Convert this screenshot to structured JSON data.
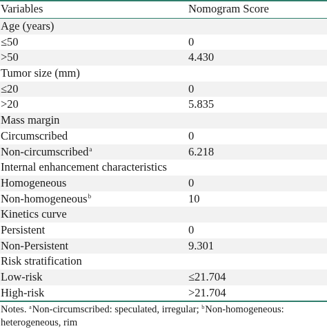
{
  "header": {
    "variables": "Variables",
    "score": "Nomogram Score"
  },
  "rows": [
    {
      "label": "Age (years)",
      "score": "",
      "sup": ""
    },
    {
      "label": "≤50",
      "score": "0",
      "sup": ""
    },
    {
      "label": ">50",
      "score": "4.430",
      "sup": ""
    },
    {
      "label": "Tumor size (mm)",
      "score": "",
      "sup": ""
    },
    {
      "label": "≤20",
      "score": "0",
      "sup": ""
    },
    {
      "label": ">20",
      "score": "5.835",
      "sup": ""
    },
    {
      "label": "Mass margin",
      "score": "",
      "sup": ""
    },
    {
      "label": "Circumscribed",
      "score": "0",
      "sup": ""
    },
    {
      "label": "Non-circumscribed",
      "score": "6.218",
      "sup": "a"
    },
    {
      "label": "Internal enhancement characteristics",
      "score": "",
      "sup": ""
    },
    {
      "label": "Homogeneous",
      "score": "0",
      "sup": ""
    },
    {
      "label": "Non-homogeneous",
      "score": "10",
      "sup": "b"
    },
    {
      "label": "Kinetics curve",
      "score": "",
      "sup": ""
    },
    {
      "label": "Persistent",
      "score": "0",
      "sup": ""
    },
    {
      "label": "Non-Persistent",
      "score": "9.301",
      "sup": ""
    },
    {
      "label": "Risk stratification",
      "score": "",
      "sup": ""
    },
    {
      "label": "Low-risk",
      "score": "≤21.704",
      "sup": ""
    },
    {
      "label": "High-risk",
      "score": ">21.704",
      "sup": ""
    }
  ],
  "notes": {
    "prefix": "Notes. ",
    "sup_a": "a",
    "text_a": "Non-circumscribed: speculated, irregular; ",
    "sup_b": "b",
    "text_b": "Non-homogeneous: heterogeneous, rim"
  },
  "colors": {
    "rule": "#2e7d6b",
    "shaded_row": "#f2f2f2"
  }
}
